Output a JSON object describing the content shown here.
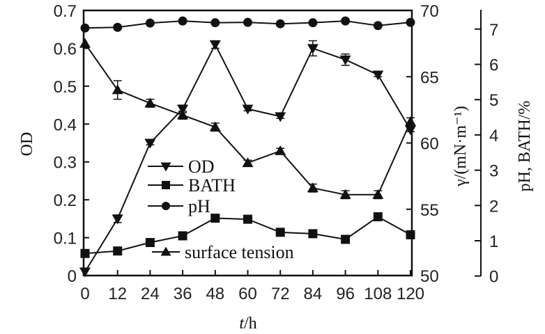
{
  "chart_data": {
    "type": "line",
    "xlabel_italic": "t",
    "xlabel_unit": "/h",
    "ylabel_left": "OD",
    "ylabel_right1": "γ/(mN·m⁻¹)",
    "ylabel_right2": "pH, BATH/%",
    "x": [
      0,
      12,
      24,
      36,
      48,
      60,
      72,
      84,
      96,
      108,
      120
    ],
    "xticks": [
      "0",
      "12",
      "24",
      "36",
      "48",
      "60",
      "72",
      "84",
      "96",
      "108",
      "120"
    ],
    "xlim": [
      0,
      120
    ],
    "ylim_left": [
      0,
      0.7
    ],
    "yticks_left": [
      "0",
      "0.1",
      "0.2",
      "0.3",
      "0.4",
      "0.5",
      "0.6",
      "0.7"
    ],
    "ylim_right1": [
      50,
      70
    ],
    "yticks_right1": [
      "50",
      "55",
      "60",
      "65",
      "70"
    ],
    "ylim_right2": [
      0,
      7
    ],
    "yticks_right2": [
      "0",
      "1",
      "2",
      "3",
      "4",
      "5",
      "6",
      "7"
    ],
    "grid": false,
    "legend_placement": "center-left",
    "series": [
      {
        "name": "OD",
        "axis": "left",
        "marker": "triangle-down",
        "values": [
          0.01,
          0.15,
          0.35,
          0.44,
          0.61,
          0.44,
          0.42,
          0.6,
          0.57,
          0.53,
          0.385
        ],
        "error": [
          0,
          0.01,
          0.005,
          0.01,
          0.01,
          0.005,
          0.005,
          0.02,
          0.015,
          0.005,
          0.005
        ]
      },
      {
        "name": "BATH",
        "axis": "right2",
        "marker": "square",
        "values": [
          0.64,
          0.71,
          0.95,
          1.14,
          1.64,
          1.61,
          1.24,
          1.2,
          1.04,
          1.68,
          1.17
        ],
        "error": [
          0,
          0,
          0,
          0,
          0,
          0,
          0,
          0,
          0,
          0,
          0
        ]
      },
      {
        "name": "pH",
        "axis": "right2",
        "marker": "circle",
        "values": [
          7.03,
          7.05,
          7.17,
          7.23,
          7.18,
          7.19,
          7.15,
          7.18,
          7.23,
          7.1,
          7.19
        ],
        "error": [
          0,
          0,
          0,
          0,
          0,
          0,
          0,
          0,
          0,
          0,
          0
        ]
      },
      {
        "name": "surface tension",
        "axis": "right1",
        "marker": "triangle-up",
        "values": [
          67.5,
          64.0,
          63.0,
          62.1,
          61.2,
          58.5,
          59.4,
          56.6,
          56.1,
          56.1,
          61.6
        ],
        "error": [
          0,
          0.7,
          0.3,
          0.3,
          0.3,
          0.2,
          0.2,
          0.3,
          0.3,
          0.3,
          0.3
        ]
      }
    ],
    "colors": {
      "line": "#111111",
      "axis": "#111111"
    }
  }
}
